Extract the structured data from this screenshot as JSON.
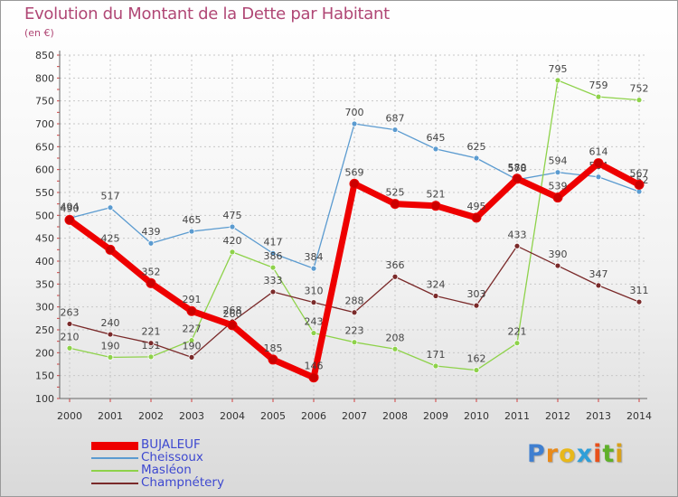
{
  "title": "Evolution du Montant de la Dette par Habitant",
  "subtitle": "(en €)",
  "logo": {
    "letters": [
      "P",
      "r",
      "o",
      "x",
      "i",
      "t",
      "i"
    ],
    "colors": [
      "#3f7fd0",
      "#e88a1a",
      "#e8b81a",
      "#2f9fd8",
      "#e8501a",
      "#5fb02a",
      "#d8a01a"
    ]
  },
  "chart_data": {
    "type": "line",
    "x": [
      "2000",
      "2001",
      "2002",
      "2003",
      "2004",
      "2005",
      "2006",
      "2007",
      "2008",
      "2009",
      "2010",
      "2011",
      "2012",
      "2013",
      "2014"
    ],
    "ylim": [
      100,
      850
    ],
    "yticks": [
      "100",
      "150",
      "200",
      "250",
      "300",
      "350",
      "400",
      "450",
      "500",
      "550",
      "600",
      "650",
      "700",
      "750",
      "800",
      "850"
    ],
    "grid": true,
    "legend": "bottom-left",
    "series": [
      {
        "name": "BUJALEUF",
        "color": "#ee0000",
        "values": [
          490,
          425,
          352,
          291,
          260,
          185,
          146,
          569,
          525,
          521,
          495,
          580,
          539,
          614,
          567
        ]
      },
      {
        "name": "Cheissoux",
        "color": "#5b9bd0",
        "values": [
          494,
          517,
          439,
          465,
          475,
          417,
          384,
          700,
          687,
          645,
          625,
          578,
          594,
          584,
          552
        ]
      },
      {
        "name": "Masléon",
        "color": "#8ed24a",
        "values": [
          210,
          190,
          191,
          227,
          420,
          386,
          243,
          223,
          208,
          171,
          162,
          221,
          795,
          759,
          752
        ]
      },
      {
        "name": "Champnétery",
        "color": "#7a2a2a",
        "values": [
          263,
          240,
          221,
          190,
          268,
          333,
          310,
          288,
          366,
          324,
          303,
          433,
          390,
          347,
          311
        ]
      }
    ]
  }
}
